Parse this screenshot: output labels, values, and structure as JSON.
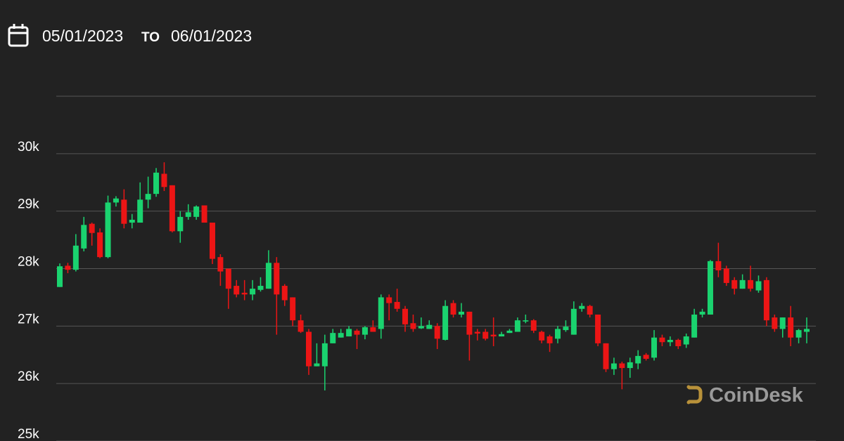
{
  "date_range": {
    "start": "05/01/2023",
    "separator": "TO",
    "end": "06/01/2023"
  },
  "watermark": "CoinDesk",
  "chart_data": {
    "type": "candlestick",
    "up_color": "#1ad36f",
    "down_color": "#ec1515",
    "ylim": [
      25000,
      31000
    ],
    "yticks": [
      {
        "value": 25000,
        "label": "25k"
      },
      {
        "value": 26000,
        "label": "26k"
      },
      {
        "value": 27000,
        "label": "27k"
      },
      {
        "value": 28000,
        "label": "28k"
      },
      {
        "value": 29000,
        "label": "29k"
      },
      {
        "value": 30000,
        "label": "30k"
      }
    ],
    "grid": true,
    "open": [
      27680,
      28050,
      27980,
      28350,
      28780,
      28630,
      28200,
      29150,
      29200,
      28800,
      28800,
      29200,
      29300,
      29650,
      29450,
      28650,
      28900,
      28900,
      29100,
      28800,
      28200,
      28000,
      27700,
      27580,
      27550,
      27630,
      27650,
      28100,
      27700,
      27500,
      27100,
      26900,
      26300,
      26300,
      26700,
      26800,
      26820,
      26920,
      26850,
      26980,
      26950,
      27500,
      27420,
      27300,
      27050,
      26960,
      26950,
      27000,
      26760,
      27400,
      27200,
      27250,
      26900,
      26900,
      26850,
      26820,
      26880,
      26900,
      27080,
      27100,
      26900,
      26820,
      26780,
      26930,
      26850,
      27300,
      27350,
      27200,
      26700,
      26250,
      26350,
      26270,
      26350,
      26500,
      26450,
      26800,
      26720,
      26760,
      26680,
      26800,
      27200,
      27200,
      28130,
      28000,
      27800,
      27650,
      27800,
      27620,
      27800,
      27150,
      26950,
      27150,
      26800,
      26900
    ],
    "high": [
      28090,
      28100,
      28600,
      28900,
      28800,
      28700,
      29270,
      29260,
      29380,
      28950,
      29500,
      29600,
      29750,
      29850,
      29450,
      29000,
      29120,
      29100,
      29100,
      28800,
      28250,
      28000,
      27800,
      27800,
      27800,
      27850,
      28320,
      28200,
      27730,
      27500,
      27200,
      26950,
      26700,
      26850,
      26950,
      26950,
      27000,
      26950,
      27000,
      27100,
      27550,
      27550,
      27650,
      27350,
      27200,
      27150,
      27100,
      27050,
      27450,
      27450,
      27400,
      27250,
      26950,
      26950,
      27150,
      26900,
      26950,
      27150,
      27200,
      27120,
      26920,
      26850,
      27000,
      27100,
      27430,
      27400,
      27370,
      27200,
      26700,
      26450,
      26380,
      26450,
      26580,
      26530,
      26930,
      26850,
      26820,
      26780,
      26870,
      27300,
      27300,
      28150,
      28450,
      28050,
      27850,
      27900,
      28050,
      27880,
      27850,
      27200,
      27150,
      27350,
      26950,
      27150
    ],
    "low": [
      27680,
      27920,
      27950,
      28300,
      28400,
      28180,
      28180,
      29080,
      28700,
      28700,
      28800,
      29050,
      29250,
      29350,
      28630,
      28450,
      28850,
      28850,
      28800,
      28080,
      27700,
      27300,
      27500,
      27450,
      27450,
      27600,
      27650,
      26850,
      27350,
      27000,
      26880,
      26150,
      26300,
      25880,
      26700,
      26800,
      26820,
      26600,
      26770,
      26900,
      26780,
      27100,
      27250,
      26900,
      26900,
      26950,
      26950,
      26600,
      26750,
      27150,
      27150,
      26400,
      26750,
      26750,
      26650,
      26820,
      26880,
      26900,
      27050,
      26880,
      26700,
      26550,
      26700,
      26900,
      26850,
      27250,
      27150,
      26650,
      26200,
      26150,
      25900,
      26100,
      26250,
      26400,
      26400,
      26650,
      26650,
      26600,
      26620,
      26800,
      27150,
      27200,
      27850,
      27700,
      27550,
      27650,
      27600,
      27580,
      27000,
      26900,
      26800,
      26650,
      26700,
      26700
    ],
    "close": [
      28040,
      27980,
      28400,
      28760,
      28620,
      28200,
      29150,
      29220,
      28780,
      28850,
      29200,
      29300,
      29670,
      29420,
      28650,
      28900,
      28980,
      29080,
      28800,
      28170,
      27950,
      27650,
      27550,
      27550,
      27650,
      27700,
      28100,
      27550,
      27450,
      27100,
      26900,
      26300,
      26350,
      26700,
      26880,
      26880,
      26950,
      26850,
      26980,
      26900,
      27500,
      27400,
      27300,
      27030,
      26950,
      27000,
      27020,
      26780,
      27350,
      27200,
      27250,
      26850,
      26870,
      26780,
      26820,
      26860,
      26920,
      27100,
      27100,
      26920,
      26750,
      26700,
      26950,
      26990,
      27300,
      27350,
      27200,
      26700,
      26250,
      26350,
      26270,
      26370,
      26480,
      26430,
      26800,
      26720,
      26760,
      26650,
      26820,
      27200,
      27250,
      28130,
      27970,
      27750,
      27650,
      27800,
      27650,
      27780,
      27100,
      26950,
      27150,
      26800,
      26930,
      26950
    ]
  }
}
